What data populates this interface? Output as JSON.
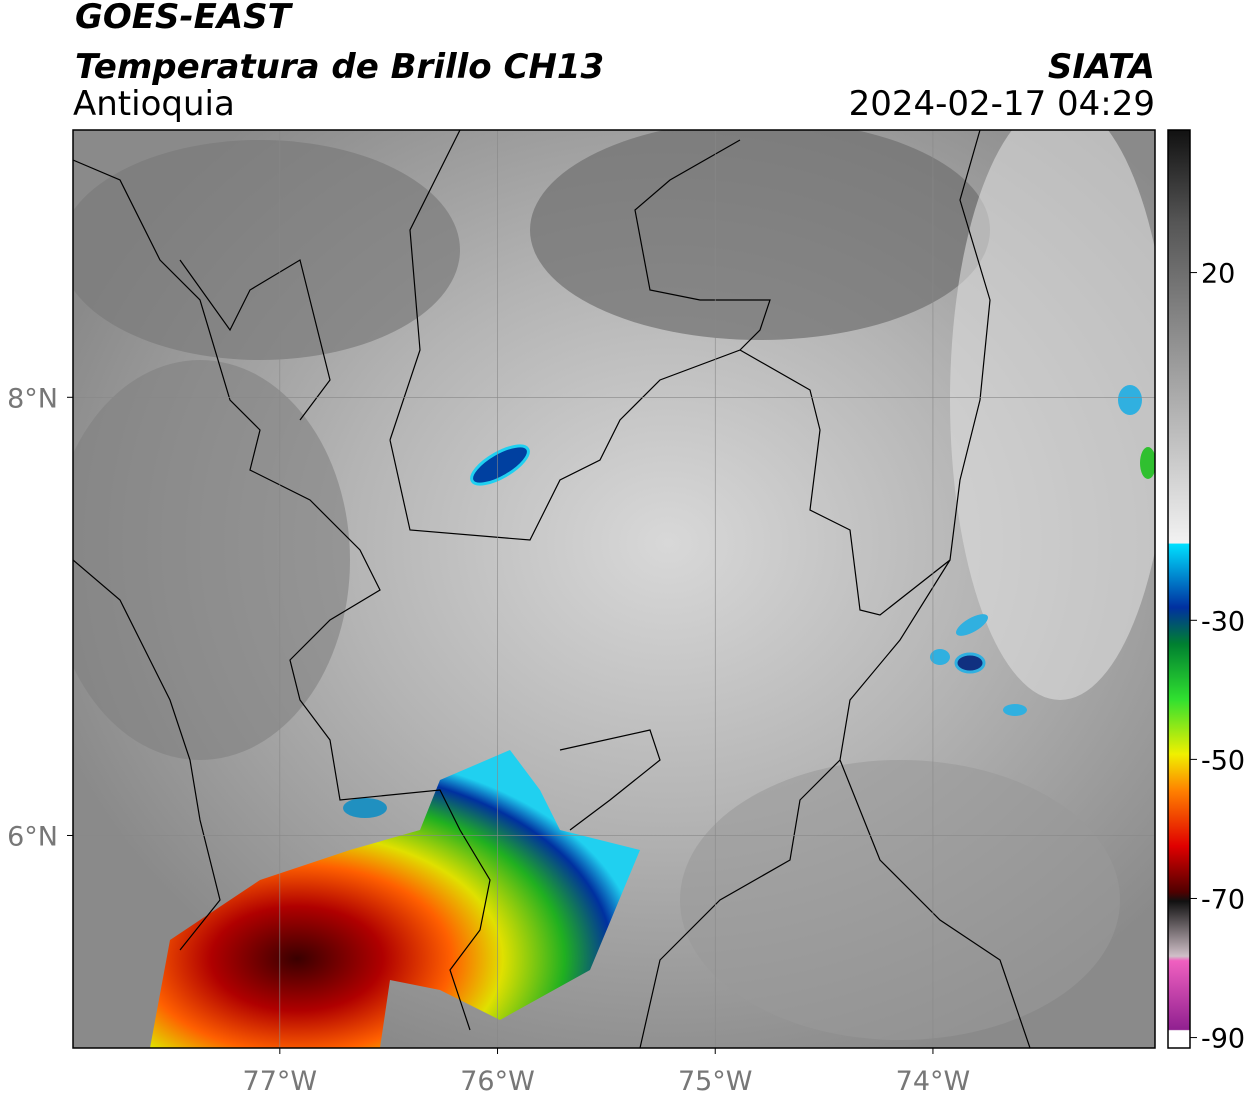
{
  "header": {
    "title": "GOES-EAST",
    "subtitle": "Temperatura de Brillo CH13",
    "region": "Antioquia",
    "source": "SIATA",
    "datetime": "2024-02-17 04:29"
  },
  "map": {
    "xlim": [
      -77.95,
      -72.98
    ],
    "ylim": [
      5.03,
      9.22
    ],
    "xticks": [
      {
        "value": -77,
        "label": "77°W"
      },
      {
        "value": -76,
        "label": "76°W"
      },
      {
        "value": -75,
        "label": "75°W"
      },
      {
        "value": -74,
        "label": "74°W"
      }
    ],
    "yticks": [
      {
        "value": 6,
        "label": "6°N"
      },
      {
        "value": 8,
        "label": "8°N"
      }
    ],
    "grid": true
  },
  "colorbar": {
    "lim": [
      -91.5,
      40.5
    ],
    "ticks": [
      20,
      -30,
      -50,
      -70,
      -90
    ]
  }
}
